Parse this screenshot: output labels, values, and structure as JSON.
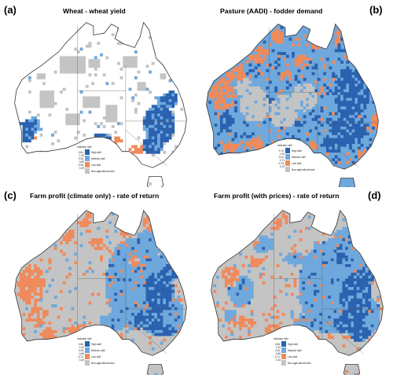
{
  "colors": {
    "dark_blue": "#2a62b0",
    "light_blue": "#6fa8dc",
    "orange": "#ef8a5c",
    "gray": "#c4c4c4",
    "outline": "#333333"
  },
  "panels": [
    {
      "label": "(a)",
      "title": "Wheat - wheat yield",
      "fill_mode": "wheat",
      "legend": {
        "title": "Indicator skill",
        "rows": [
          {
            "value": "0.81-1.00",
            "name": "High skill",
            "color": "dark_blue"
          },
          {
            "value": "0.30-0.80",
            "name": "Medium skill",
            "color": "light_blue"
          },
          {
            "value": "-0.95-0.29",
            "name": "Low skill",
            "color": "orange"
          },
          {
            "value": "",
            "name": "Non-agricultural land",
            "color": "gray"
          }
        ]
      }
    },
    {
      "label": "(b)",
      "title": "Pasture (AADI) - fodder demand",
      "fill_mode": "pasture",
      "legend": {
        "title": "Indicator skill",
        "rows": [
          {
            "value": "0.72-1.00",
            "name": "High skill",
            "color": "dark_blue"
          },
          {
            "value": "0.24-0.71",
            "name": "Medium skill",
            "color": "light_blue"
          },
          {
            "value": "-0.73-0.23",
            "name": "Low skill",
            "color": "orange"
          },
          {
            "value": "",
            "name": "Non-agricultural land",
            "color": "gray"
          }
        ]
      }
    },
    {
      "label": "(c)",
      "title": "Farm profit (climate only) - rate of return",
      "fill_mode": "profit_climate",
      "legend": {
        "title": "Indicator skill",
        "rows": [
          {
            "value": "0.66-1.00",
            "name": "High skill",
            "color": "dark_blue"
          },
          {
            "value": "0.25-0.65",
            "name": "Medium skill",
            "color": "light_blue"
          },
          {
            "value": "-0.71-0.24",
            "name": "Low skill",
            "color": "orange"
          },
          {
            "value": "",
            "name": "Non-agricultural land",
            "color": "gray"
          }
        ]
      }
    },
    {
      "label": "(d)",
      "title": "Farm profit (with prices) - rate of return",
      "fill_mode": "profit_prices",
      "legend": {
        "title": "Indicator skill",
        "rows": [
          {
            "value": "0.66-1.00",
            "name": "High skill",
            "color": "dark_blue"
          },
          {
            "value": "0.25-0.65",
            "name": "Medium skill",
            "color": "light_blue"
          },
          {
            "value": "-0.71-0.24",
            "name": "Low skill",
            "color": "orange"
          },
          {
            "value": "",
            "name": "Non-agricultural land",
            "color": "gray"
          }
        ]
      }
    }
  ]
}
